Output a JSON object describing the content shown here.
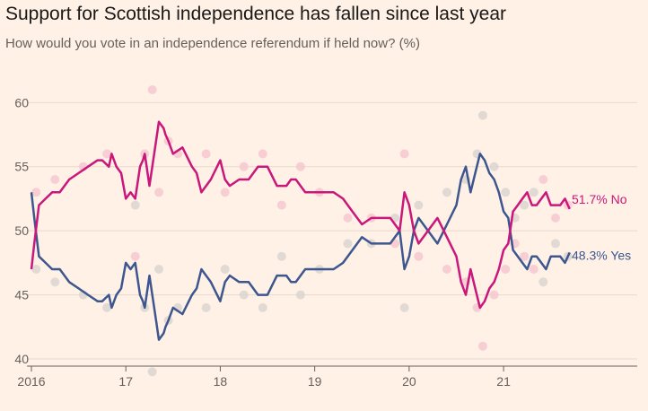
{
  "title": "Support for Scottish independence has fallen since last year",
  "subtitle": "How would you vote in an independence referendum if held now? (%)",
  "colors": {
    "background": "#fff1e5",
    "no": "#c9177b",
    "yes": "#3d568f",
    "no_dots": "#f5c6cf",
    "yes_dots": "#d9d4cf",
    "grid": "#e6d9ce",
    "axis": "#66605c"
  },
  "chart_data": {
    "type": "line",
    "xlabel": "",
    "ylabel": "",
    "xlim": [
      2016.0,
      2021.75
    ],
    "ylim": [
      40,
      61
    ],
    "yticks": [
      40,
      45,
      50,
      55,
      60
    ],
    "xticks": [
      {
        "value": 2016.0,
        "label": "2016"
      },
      {
        "value": 2017.0,
        "label": "17"
      },
      {
        "value": 2018.0,
        "label": "18"
      },
      {
        "value": 2019.0,
        "label": "19"
      },
      {
        "value": 2020.0,
        "label": "20"
      },
      {
        "value": 2021.0,
        "label": "21"
      }
    ],
    "grid": "horizontal",
    "series": [
      {
        "key": "no",
        "name": "No",
        "end_label": "51.7% No",
        "x": [
          2016.0,
          2016.03,
          2016.08,
          2016.15,
          2016.22,
          2016.3,
          2016.4,
          2016.5,
          2016.6,
          2016.7,
          2016.75,
          2016.82,
          2016.85,
          2016.9,
          2016.95,
          2017.0,
          2017.05,
          2017.1,
          2017.15,
          2017.18,
          2017.2,
          2017.22,
          2017.25,
          2017.3,
          2017.32,
          2017.35,
          2017.4,
          2017.42,
          2017.45,
          2017.5,
          2017.6,
          2017.7,
          2017.75,
          2017.8,
          2017.9,
          2018.0,
          2018.05,
          2018.1,
          2018.2,
          2018.3,
          2018.4,
          2018.5,
          2018.6,
          2018.7,
          2018.75,
          2018.8,
          2018.9,
          2019.0,
          2019.1,
          2019.2,
          2019.3,
          2019.4,
          2019.5,
          2019.6,
          2019.7,
          2019.8,
          2019.9,
          2019.95,
          2020.0,
          2020.05,
          2020.1,
          2020.2,
          2020.3,
          2020.4,
          2020.5,
          2020.55,
          2020.6,
          2020.65,
          2020.7,
          2020.75,
          2020.8,
          2020.85,
          2020.9,
          2020.95,
          2021.0,
          2021.05,
          2021.1,
          2021.15,
          2021.2,
          2021.25,
          2021.3,
          2021.35,
          2021.4,
          2021.45,
          2021.5,
          2021.55,
          2021.6,
          2021.65,
          2021.7
        ],
        "values": [
          47,
          49,
          52,
          52.5,
          53,
          53,
          54,
          54.5,
          55,
          55.5,
          55.5,
          55,
          56,
          55,
          54.5,
          52.5,
          53,
          52.5,
          55,
          55.5,
          56,
          55,
          53.5,
          56,
          57,
          58.5,
          58,
          57.5,
          57,
          56,
          56.5,
          55,
          54.5,
          53,
          54,
          55.5,
          54,
          53.5,
          54,
          54,
          55,
          55,
          53.5,
          53.5,
          54,
          54,
          53,
          53,
          53,
          53,
          52.5,
          51.5,
          50.5,
          51,
          51,
          51,
          50,
          53,
          52,
          50,
          49,
          50,
          51,
          49.5,
          48,
          46,
          45,
          47,
          45.5,
          44,
          44.5,
          45.5,
          46,
          47,
          48.5,
          49,
          51.5,
          52,
          52.5,
          53,
          52,
          52,
          52.5,
          53,
          52,
          52,
          52,
          52.5,
          51.7
        ]
      },
      {
        "key": "yes",
        "name": "Yes",
        "end_label": "48.3% Yes",
        "x": [
          2016.0,
          2016.03,
          2016.08,
          2016.15,
          2016.22,
          2016.3,
          2016.4,
          2016.5,
          2016.6,
          2016.7,
          2016.75,
          2016.82,
          2016.85,
          2016.9,
          2016.95,
          2017.0,
          2017.05,
          2017.1,
          2017.15,
          2017.18,
          2017.2,
          2017.22,
          2017.25,
          2017.3,
          2017.32,
          2017.35,
          2017.4,
          2017.42,
          2017.45,
          2017.5,
          2017.6,
          2017.7,
          2017.75,
          2017.8,
          2017.9,
          2018.0,
          2018.05,
          2018.1,
          2018.2,
          2018.3,
          2018.4,
          2018.5,
          2018.6,
          2018.7,
          2018.75,
          2018.8,
          2018.9,
          2019.0,
          2019.1,
          2019.2,
          2019.3,
          2019.4,
          2019.5,
          2019.6,
          2019.7,
          2019.8,
          2019.9,
          2019.95,
          2020.0,
          2020.05,
          2020.1,
          2020.2,
          2020.3,
          2020.4,
          2020.5,
          2020.55,
          2020.6,
          2020.65,
          2020.7,
          2020.75,
          2020.8,
          2020.85,
          2020.9,
          2020.95,
          2021.0,
          2021.05,
          2021.1,
          2021.15,
          2021.2,
          2021.25,
          2021.3,
          2021.35,
          2021.4,
          2021.45,
          2021.5,
          2021.55,
          2021.6,
          2021.65,
          2021.7
        ],
        "values": [
          53,
          51,
          48,
          47.5,
          47,
          47,
          46,
          45.5,
          45,
          44.5,
          44.5,
          45,
          44,
          45,
          45.5,
          47.5,
          47,
          47.5,
          45,
          44.5,
          44,
          45,
          46.5,
          44,
          43,
          41.5,
          42,
          42.5,
          43,
          44,
          43.5,
          45,
          45.5,
          47,
          46,
          44.5,
          46,
          46.5,
          46,
          46,
          45,
          45,
          46.5,
          46.5,
          46,
          46,
          47,
          47,
          47,
          47,
          47.5,
          48.5,
          49.5,
          49,
          49,
          49,
          50,
          47,
          48,
          50,
          51,
          50,
          49,
          50.5,
          52,
          54,
          55,
          53,
          54.5,
          56,
          55.5,
          54.5,
          54,
          53,
          51.5,
          51,
          48.5,
          48,
          47.5,
          47,
          48,
          48,
          47.5,
          47,
          48,
          48,
          48,
          47.5,
          48.3
        ]
      },
      {
        "key": "no_polls",
        "name": "",
        "type": "scatter",
        "x": [
          2016.05,
          2016.25,
          2016.55,
          2016.8,
          2017.1,
          2017.2,
          2017.28,
          2017.35,
          2017.45,
          2017.55,
          2017.85,
          2018.05,
          2018.25,
          2018.45,
          2018.65,
          2018.85,
          2019.05,
          2019.35,
          2019.6,
          2019.85,
          2019.95,
          2020.1,
          2020.4,
          2020.6,
          2020.72,
          2020.78,
          2020.9,
          2021.02,
          2021.12,
          2021.22,
          2021.32,
          2021.42,
          2021.55,
          2021.68
        ],
        "values": [
          53,
          54,
          55,
          56,
          48,
          56,
          61,
          53,
          57,
          56,
          56,
          53,
          55,
          56,
          52,
          55,
          53,
          51,
          51,
          49,
          56,
          48,
          47,
          46,
          44,
          41,
          45,
          47,
          49,
          48,
          47,
          54,
          51,
          52
        ]
      },
      {
        "key": "yes_polls",
        "name": "",
        "type": "scatter",
        "x": [
          2016.05,
          2016.25,
          2016.55,
          2016.8,
          2017.1,
          2017.2,
          2017.28,
          2017.35,
          2017.45,
          2017.55,
          2017.85,
          2018.05,
          2018.25,
          2018.45,
          2018.65,
          2018.85,
          2019.05,
          2019.35,
          2019.6,
          2019.85,
          2019.95,
          2020.1,
          2020.4,
          2020.6,
          2020.72,
          2020.78,
          2020.9,
          2021.02,
          2021.12,
          2021.22,
          2021.32,
          2021.42,
          2021.55,
          2021.68
        ],
        "values": [
          47,
          46,
          45,
          44,
          52,
          44,
          39,
          47,
          43,
          44,
          44,
          47,
          45,
          44,
          48,
          45,
          47,
          49,
          49,
          51,
          44,
          52,
          53,
          54,
          56,
          59,
          55,
          53,
          51,
          52,
          53,
          46,
          49,
          48
        ]
      }
    ]
  }
}
